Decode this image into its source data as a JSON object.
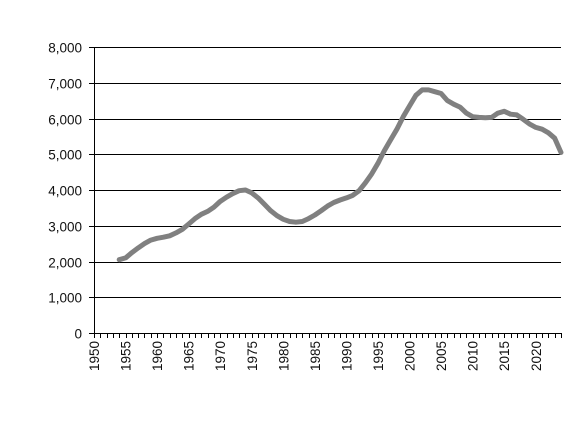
{
  "chart_data": {
    "type": "line",
    "title": "",
    "xlabel": "",
    "ylabel": "",
    "xlim": [
      1950,
      2024
    ],
    "ylim": [
      0,
      8000
    ],
    "y_ticks": [
      0,
      1000,
      2000,
      3000,
      4000,
      5000,
      6000,
      7000,
      8000
    ],
    "y_tick_labels": [
      "0",
      "1,000",
      "2,000",
      "3,000",
      "4,000",
      "5,000",
      "6,000",
      "7,000",
      "8,000"
    ],
    "x_tick_labels": [
      "1950",
      "1955",
      "1960",
      "1965",
      "1970",
      "1975",
      "1980",
      "1985",
      "1990",
      "1995",
      "2000",
      "2005",
      "2010",
      "2015",
      "2020"
    ],
    "x_tick_values": [
      1950,
      1955,
      1960,
      1965,
      1970,
      1975,
      1980,
      1985,
      1990,
      1995,
      2000,
      2005,
      2010,
      2015,
      2020
    ],
    "grid": "horizontal",
    "legend": "none",
    "colors": {
      "series": "#808080",
      "grid": "#000000",
      "text": "#111111"
    },
    "series": [
      {
        "color": "#808080",
        "x": [
          1954,
          1955,
          1956,
          1957,
          1958,
          1959,
          1960,
          1961,
          1962,
          1963,
          1964,
          1965,
          1966,
          1967,
          1968,
          1969,
          1970,
          1971,
          1972,
          1973,
          1974,
          1975,
          1976,
          1977,
          1978,
          1979,
          1980,
          1981,
          1982,
          1983,
          1984,
          1985,
          1986,
          1987,
          1988,
          1989,
          1990,
          1991,
          1992,
          1993,
          1994,
          1995,
          1996,
          1997,
          1998,
          1999,
          2000,
          2001,
          2002,
          2003,
          2004,
          2005,
          2006,
          2007,
          2008,
          2009,
          2010,
          2011,
          2012,
          2013,
          2014,
          2015,
          2016,
          2017,
          2018,
          2019,
          2020,
          2021,
          2022,
          2023,
          2024
        ],
        "values": [
          2050,
          2100,
          2250,
          2380,
          2500,
          2600,
          2650,
          2680,
          2720,
          2800,
          2900,
          3050,
          3200,
          3320,
          3400,
          3520,
          3680,
          3800,
          3900,
          3980,
          4000,
          3920,
          3780,
          3600,
          3420,
          3280,
          3180,
          3120,
          3100,
          3120,
          3200,
          3300,
          3420,
          3550,
          3650,
          3720,
          3780,
          3850,
          3980,
          4200,
          4450,
          4750,
          5100,
          5400,
          5700,
          6050,
          6350,
          6650,
          6800,
          6800,
          6750,
          6700,
          6500,
          6400,
          6320,
          6150,
          6050,
          6030,
          6020,
          6030,
          6150,
          6200,
          6120,
          6100,
          5980,
          5850,
          5750,
          5700,
          5600,
          5450,
          5050
        ]
      }
    ]
  }
}
